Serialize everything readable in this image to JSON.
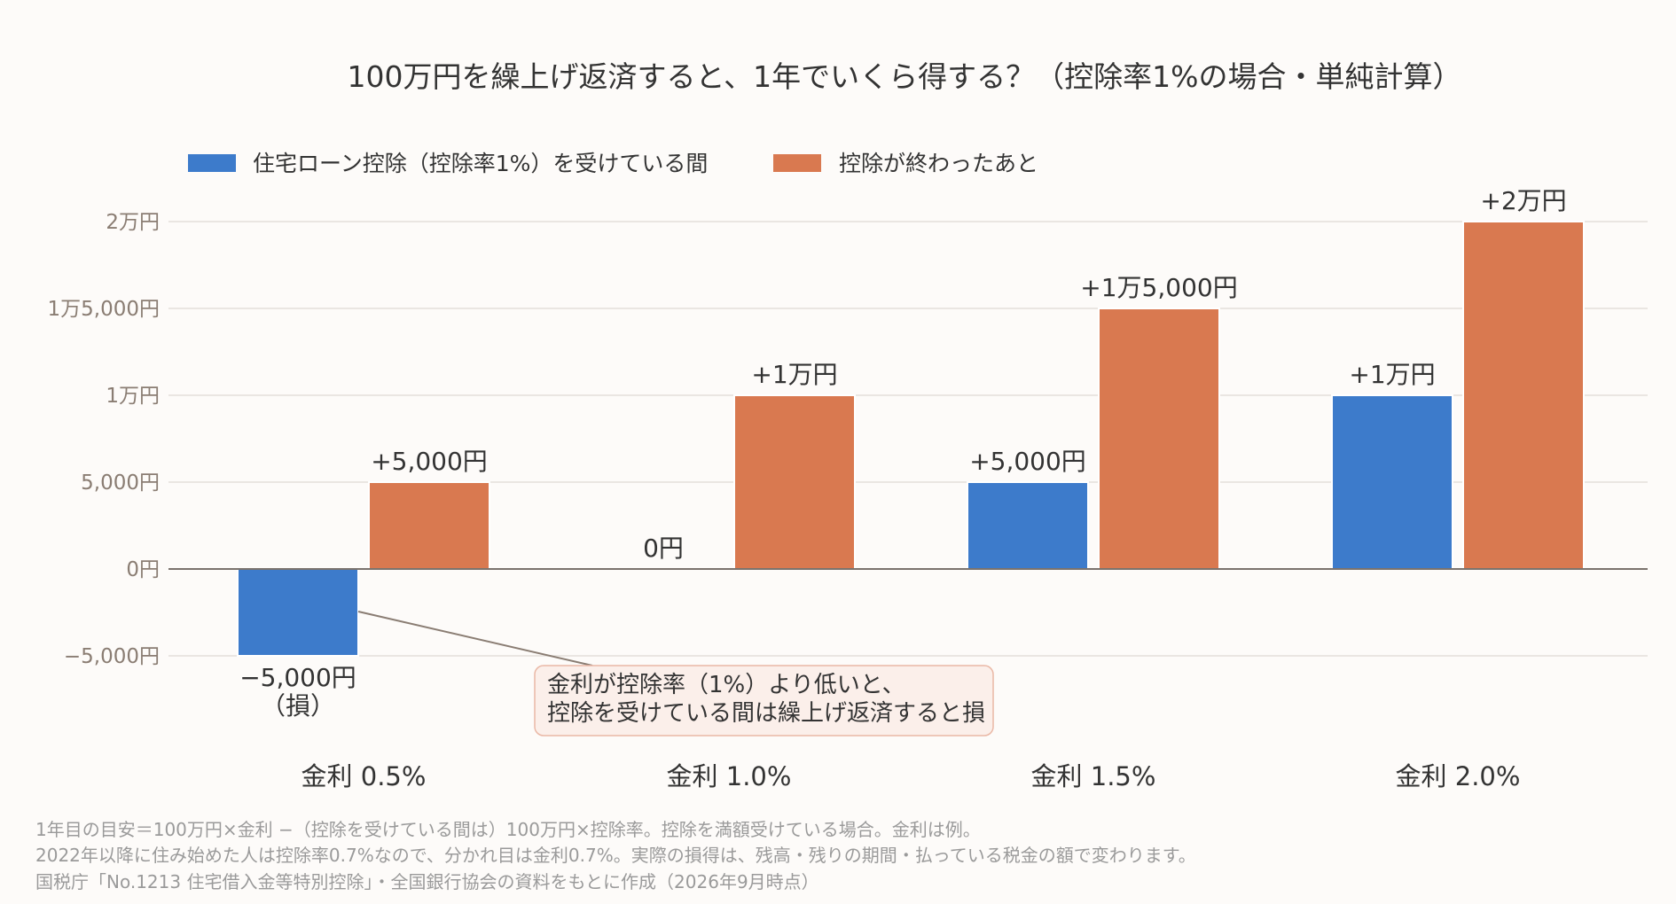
{
  "chart_data": {
    "type": "bar",
    "title": "100万円を繰上げ返済すると、1年でいくら得する？（控除率1%の場合・単純計算）",
    "categories": [
      "金利 0.5%",
      "金利 1.0%",
      "金利 1.5%",
      "金利 2.0%"
    ],
    "series": [
      {
        "name": "住宅ローン控除（控除率1%）を受けている間",
        "color": "#3d7bcb",
        "values": [
          -5000,
          0,
          5000,
          10000
        ],
        "labels": [
          "−5,000円",
          "0円",
          "+5,000円",
          "+1万円"
        ]
      },
      {
        "name": "控除が終わったあと",
        "color": "#d97950",
        "values": [
          5000,
          10000,
          15000,
          20000
        ],
        "labels": [
          "+5,000円",
          "+1万円",
          "+1万5,000円",
          "+2万円"
        ]
      }
    ],
    "loss_suffix": "（損）",
    "yticks": [
      {
        "value": 20000,
        "label": "2万円"
      },
      {
        "value": 15000,
        "label": "1万5,000円"
      },
      {
        "value": 10000,
        "label": "1万円"
      },
      {
        "value": 5000,
        "label": "5,000円"
      },
      {
        "value": 0,
        "label": "0円"
      },
      {
        "value": -5000,
        "label": "−5,000円"
      }
    ],
    "ylim": [
      -5000,
      20000
    ],
    "grid": true,
    "legend_position": "top-left",
    "annotation": {
      "lines": [
        "金利が控除率（1%）より低いと、",
        "控除を受けている間は繰上げ返済すると損"
      ],
      "points_to": "金利 0.5% 住宅ローン控除（控除率1%）を受けている間"
    }
  },
  "footnotes": [
    "1年目の目安＝100万円×金利 −（控除を受けている間は）100万円×控除率。控除を満額受けている場合。金利は例。",
    "2022年以降に住み始めた人は控除率0.7%なので、分かれ目は金利0.7%。実際の損得は、残高・残りの期間・払っている税金の額で変わります。",
    "国税庁「No.1213 住宅借入金等特別控除」・全国銀行協会の資料をもとに作成（2026年9月時点）"
  ],
  "colors": {
    "background": "#fdfbf9",
    "grid": "#e4dfda",
    "zero_line": "#7b736d",
    "annotation_fill": "#fbefea",
    "annotation_border": "#eab8a6",
    "leader": "#8a7d73"
  }
}
